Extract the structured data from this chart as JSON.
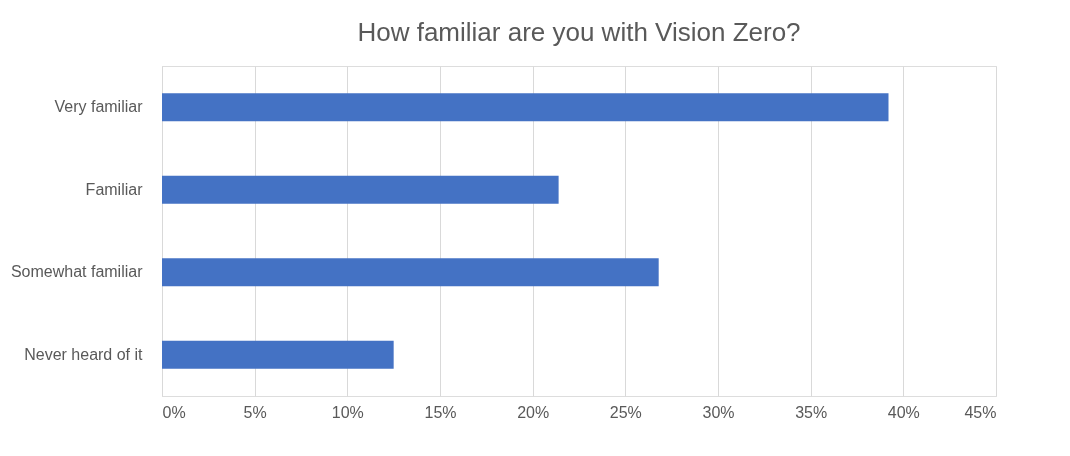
{
  "chart_data": {
    "type": "bar",
    "orientation": "horizontal",
    "title": "How familiar are you with Vision Zero?",
    "categories": [
      "Very familiar",
      "Familiar",
      "Somewhat familiar",
      "Never heard of it"
    ],
    "values": [
      39.2,
      21.4,
      26.8,
      12.5
    ],
    "color": "#4472c4",
    "xlim": [
      0,
      45
    ],
    "xticks": [
      {
        "value": 0,
        "label": "0%"
      },
      {
        "value": 5,
        "label": "5%"
      },
      {
        "value": 10,
        "label": "10%"
      },
      {
        "value": 15,
        "label": "15%"
      },
      {
        "value": 20,
        "label": "20%"
      },
      {
        "value": 25,
        "label": "25%"
      },
      {
        "value": 30,
        "label": "30%"
      },
      {
        "value": 35,
        "label": "35%"
      },
      {
        "value": 40,
        "label": "40%"
      },
      {
        "value": 45,
        "label": "45%"
      }
    ],
    "grid": "x"
  }
}
